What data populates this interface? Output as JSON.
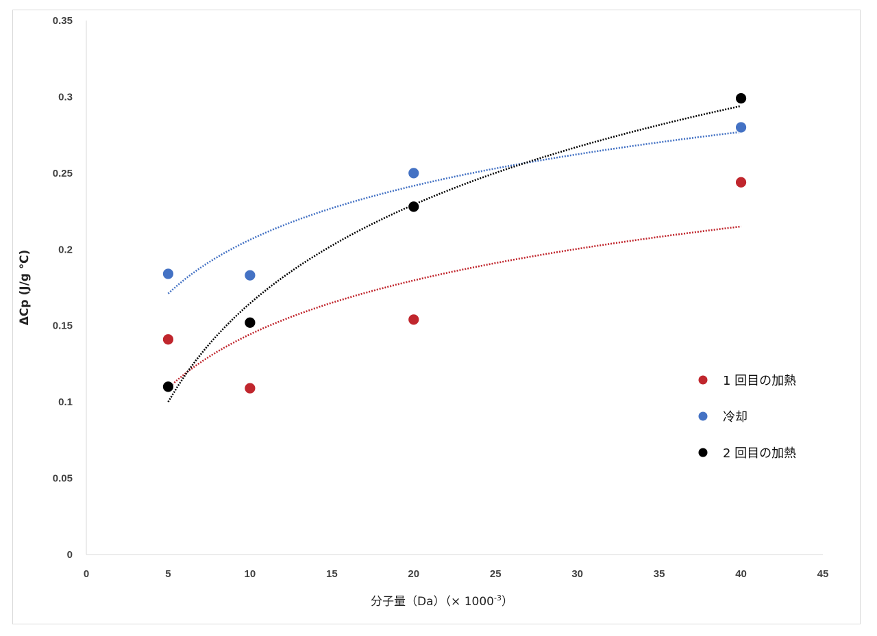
{
  "chart_data": {
    "type": "scatter",
    "xlabel": "分子量（Da）（× 1000",
    "xlabel_sup": "-3",
    "xlabel_close": "）",
    "ylabel": "ΔCp (J/g ℃)",
    "xlim": [
      0,
      45
    ],
    "ylim": [
      0,
      0.35
    ],
    "xticks": [
      "0",
      "5",
      "10",
      "15",
      "20",
      "25",
      "30",
      "35",
      "40",
      "45"
    ],
    "yticks": [
      "0",
      "0.05",
      "0.1",
      "0.15",
      "0.2",
      "0.25",
      "0.3",
      "0.35"
    ],
    "grid": false,
    "legend_position": "right",
    "trendline": "logarithmic",
    "series": [
      {
        "name": "1 回目の加熱",
        "color": "#c0262d",
        "x": [
          5,
          10,
          20,
          40
        ],
        "y": [
          0.141,
          0.109,
          0.154,
          0.244
        ],
        "trend": [
          0.109,
          0.215
        ]
      },
      {
        "name": "冷却",
        "color": "#4472c4",
        "x": [
          5,
          10,
          20,
          40
        ],
        "y": [
          0.184,
          0.183,
          0.25,
          0.28
        ],
        "trend": [
          0.171,
          0.277
        ]
      },
      {
        "name": "2 回目の加熱",
        "color": "#000000",
        "x": [
          5,
          10,
          20,
          40
        ],
        "y": [
          0.11,
          0.152,
          0.228,
          0.299
        ],
        "trend": [
          0.1,
          0.294
        ]
      }
    ]
  }
}
